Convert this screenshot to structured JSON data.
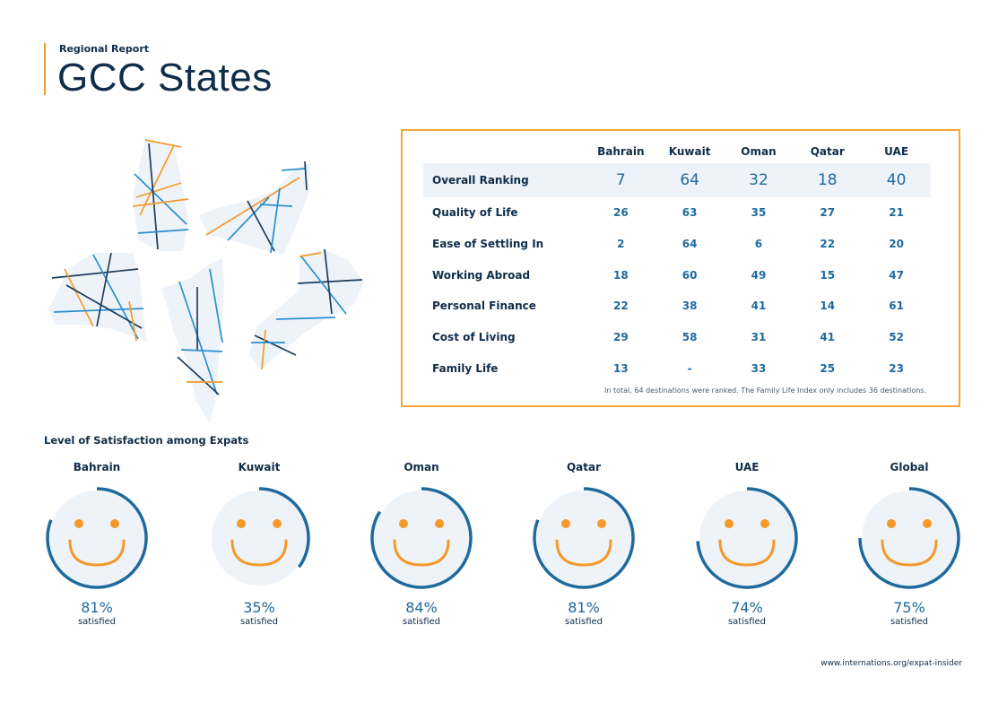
{
  "header": {
    "kicker": "Regional Report",
    "title": "GCC States"
  },
  "ranking_table": {
    "columns": [
      "Bahrain",
      "Kuwait",
      "Oman",
      "Qatar",
      "UAE"
    ],
    "rows": [
      {
        "label": "Overall Ranking",
        "values": [
          "7",
          "64",
          "32",
          "18",
          "40"
        ]
      },
      {
        "label": "Quality of Life",
        "values": [
          "26",
          "63",
          "35",
          "27",
          "21"
        ]
      },
      {
        "label": "Ease of Settling In",
        "values": [
          "2",
          "64",
          "6",
          "22",
          "20"
        ]
      },
      {
        "label": "Working Abroad",
        "values": [
          "18",
          "60",
          "49",
          "15",
          "47"
        ]
      },
      {
        "label": "Personal Finance",
        "values": [
          "22",
          "38",
          "41",
          "14",
          "61"
        ]
      },
      {
        "label": "Cost of Living",
        "values": [
          "29",
          "58",
          "31",
          "41",
          "52"
        ]
      },
      {
        "label": "Family Life",
        "values": [
          "13",
          "-",
          "33",
          "25",
          "23"
        ]
      }
    ],
    "note": "In total, 64 destinations were ranked. The Family Life Index only includes 36 destinations."
  },
  "satisfaction": {
    "heading": "Level of Satisfaction among Expats",
    "items": [
      {
        "country": "Bahrain",
        "percent": "81%",
        "value": 81,
        "label": "satisfied"
      },
      {
        "country": "Kuwait",
        "percent": "35%",
        "value": 35,
        "label": "satisfied"
      },
      {
        "country": "Oman",
        "percent": "84%",
        "value": 84,
        "label": "satisfied"
      },
      {
        "country": "Qatar",
        "percent": "81%",
        "value": 81,
        "label": "satisfied"
      },
      {
        "country": "UAE",
        "percent": "74%",
        "value": 74,
        "label": "satisfied"
      },
      {
        "country": "Global",
        "percent": "75%",
        "value": 75,
        "label": "satisfied"
      }
    ]
  },
  "footer": {
    "url": "www.internations.org/expat-insider"
  },
  "colors": {
    "navy": "#0f2d4a",
    "ring": "#1f6a9c",
    "accent_orange": "#f39a2a",
    "face_fill": "#eef3f9",
    "value_blue": "#1e6a9e"
  }
}
